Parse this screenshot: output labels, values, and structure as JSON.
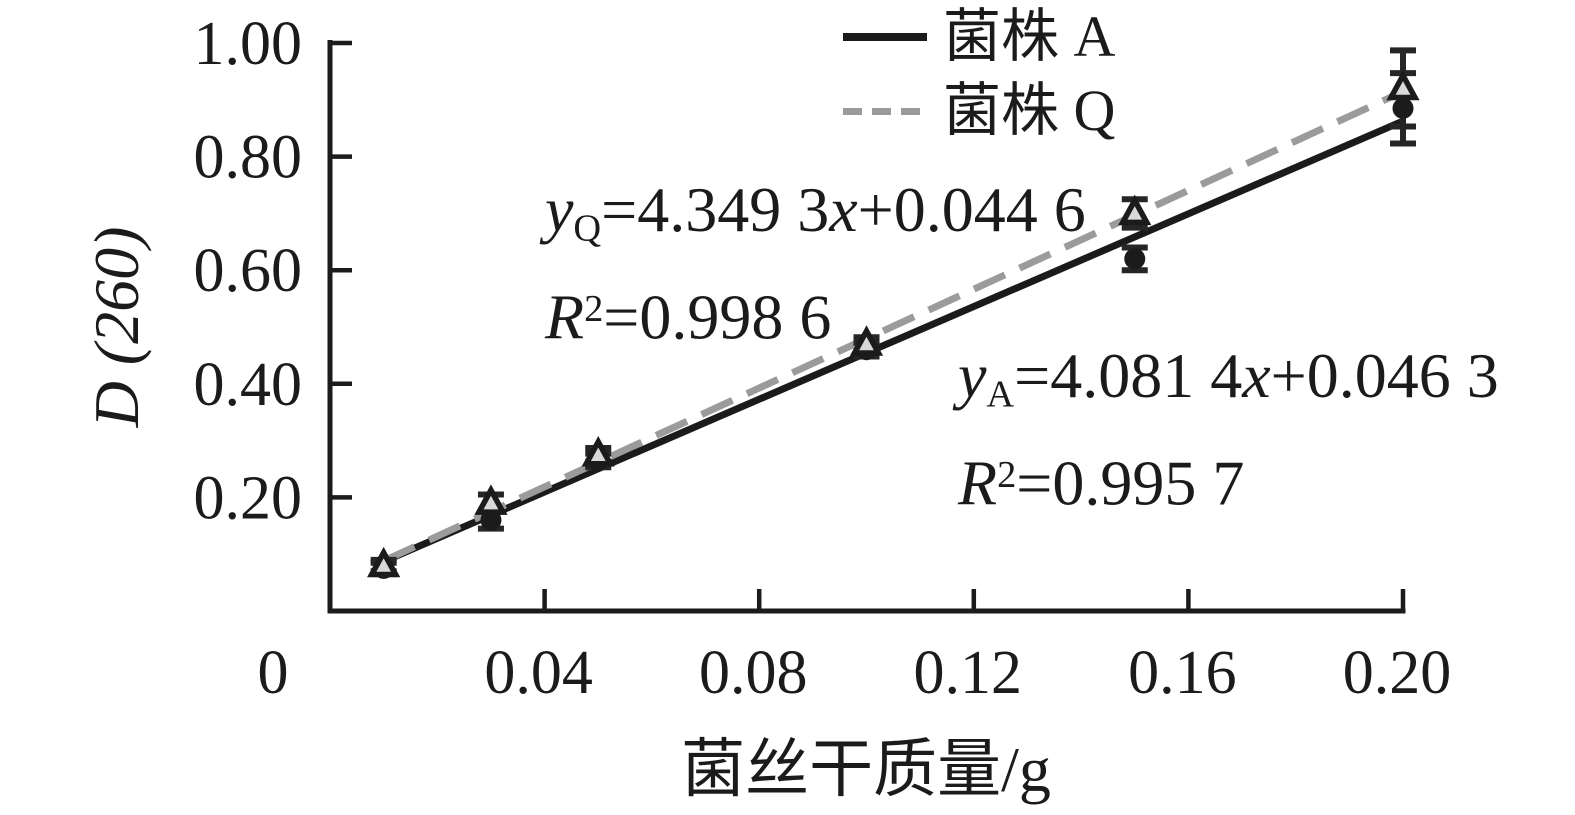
{
  "figure": {
    "background": "#ffffff",
    "colors": {
      "axis": "#1b1b1b",
      "text": "#1b1b1b",
      "strain_a": "#1b1b1b",
      "strain_q": "#9b9b9b",
      "error_bar": "#262626",
      "triangle_fill": "#d9d9d9"
    }
  },
  "axes": {
    "y_title": "D (260)",
    "x_title": "菌丝干质量/g",
    "origin_label": "0"
  },
  "legend": {
    "items": [
      {
        "label": "菌株 A",
        "style": "solid-black"
      },
      {
        "label": "菌株 Q",
        "style": "dashed-gray"
      }
    ]
  },
  "equations": {
    "q": {
      "y": "y",
      "sub": "Q",
      "mid": "=4.349 3",
      "x": "x",
      "tail": "+0.044 6",
      "r": "R",
      "rsup": "2",
      "rtail": "=0.998 6"
    },
    "a": {
      "y": "y",
      "sub": "A",
      "mid": "=4.081 4",
      "x": "x",
      "tail": "+0.046 3",
      "r": "R",
      "rsup": "2",
      "rtail": "=0.995 7"
    }
  },
  "chart_data": {
    "type": "scatter",
    "title": "",
    "xlabel": "菌丝干质量/g",
    "ylabel": "D (260)",
    "xlim": [
      0,
      0.2
    ],
    "ylim": [
      0,
      1.0
    ],
    "grid": false,
    "legend_position": "top-center",
    "x_tick_values": [
      0.04,
      0.08,
      0.12,
      0.16,
      0.2
    ],
    "x_tick_labels": [
      "0.04",
      "0.08",
      "0.12",
      "0.16",
      "0.20"
    ],
    "origin_label": "0",
    "y_tick_values": [
      0.2,
      0.4,
      0.6,
      0.8,
      1.0
    ],
    "y_tick_labels": [
      "0.20",
      "0.40",
      "0.60",
      "0.80",
      "1.00"
    ],
    "x": [
      0.01,
      0.03,
      0.05,
      0.1,
      0.15,
      0.2
    ],
    "series": [
      {
        "name": "菌株 A",
        "marker": "circle",
        "line": "solid",
        "color": "#1b1b1b",
        "values": [
          0.075,
          0.16,
          0.265,
          0.46,
          0.62,
          0.885
        ],
        "yerr": [
          0.01,
          0.015,
          0.012,
          0.012,
          0.02,
          0.062
        ],
        "fit": {
          "equation": "y=4.081 4x+0.046 3",
          "slope": 4.0814,
          "intercept": 0.0463,
          "r_squared": 0.9957,
          "x_start": 0.01,
          "x_end": 0.2
        }
      },
      {
        "name": "菌株 Q",
        "marker": "triangle",
        "line": "dashed",
        "color": "#9b9b9b",
        "values": [
          0.08,
          0.19,
          0.275,
          0.47,
          0.7,
          0.92
        ],
        "yerr": [
          0.01,
          0.015,
          0.012,
          0.012,
          0.025,
          0.067
        ],
        "fit": {
          "equation": "y=4.349 3x+0.044 6",
          "slope": 4.3493,
          "intercept": 0.0446,
          "r_squared": 0.9986,
          "x_start": 0.01,
          "x_end": 0.2
        }
      }
    ],
    "annotations": [
      {
        "text": "yQ=4.349 3x+0.044 6  R2=0.998 6",
        "anchor": "above-line-left"
      },
      {
        "text": "yA=4.081 4x+0.046 3  R2=0.995 7",
        "anchor": "below-line-right"
      }
    ]
  }
}
